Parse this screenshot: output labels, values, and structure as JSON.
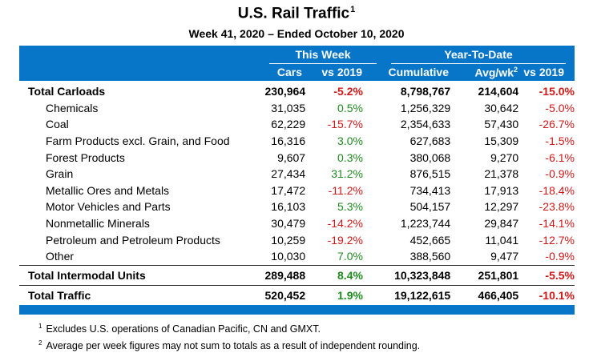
{
  "title": "U.S. Rail Traffic",
  "title_note": "1",
  "subtitle": "Week 41, 2020 – Ended October 10, 2020",
  "header": {
    "this_week": "This Week",
    "ytd": "Year-To-Date",
    "cars": "Cars",
    "vs2019": "vs 2019",
    "cumulative": "Cumulative",
    "avgwk": "Avg/wk",
    "avgwk_note": "2",
    "vs2019_ytd": "vs 2019"
  },
  "rows": [
    {
      "label": "Total Carloads",
      "cars": "230,964",
      "vs": "-5.2%",
      "cum": "8,798,767",
      "avg": "214,604",
      "vsytd": "-15.0%"
    },
    {
      "label": "Chemicals",
      "cars": "31,035",
      "vs": "0.5%",
      "cum": "1,256,329",
      "avg": "30,642",
      "vsytd": "-5.0%"
    },
    {
      "label": "Coal",
      "cars": "62,229",
      "vs": "-15.7%",
      "cum": "2,354,633",
      "avg": "57,430",
      "vsytd": "-26.7%"
    },
    {
      "label": "Farm Products excl. Grain, and Food",
      "cars": "16,316",
      "vs": "3.0%",
      "cum": "627,683",
      "avg": "15,309",
      "vsytd": "-1.5%"
    },
    {
      "label": "Forest Products",
      "cars": "9,607",
      "vs": "0.3%",
      "cum": "380,068",
      "avg": "9,270",
      "vsytd": "-6.1%"
    },
    {
      "label": "Grain",
      "cars": "27,434",
      "vs": "31.2%",
      "cum": "876,515",
      "avg": "21,378",
      "vsytd": "-0.9%"
    },
    {
      "label": "Metallic Ores and Metals",
      "cars": "17,472",
      "vs": "-11.2%",
      "cum": "734,413",
      "avg": "17,913",
      "vsytd": "-18.4%"
    },
    {
      "label": "Motor Vehicles and Parts",
      "cars": "16,103",
      "vs": "5.3%",
      "cum": "504,157",
      "avg": "12,297",
      "vsytd": "-23.8%"
    },
    {
      "label": "Nonmetallic Minerals",
      "cars": "30,479",
      "vs": "-14.2%",
      "cum": "1,223,744",
      "avg": "29,847",
      "vsytd": "-14.1%"
    },
    {
      "label": "Petroleum and Petroleum Products",
      "cars": "10,259",
      "vs": "-19.2%",
      "cum": "452,665",
      "avg": "11,041",
      "vsytd": "-12.7%"
    },
    {
      "label": "Other",
      "cars": "10,030",
      "vs": "7.0%",
      "cum": "388,560",
      "avg": "9,477",
      "vsytd": "-0.9%"
    },
    {
      "label": "Total Intermodal Units",
      "cars": "289,488",
      "vs": "8.4%",
      "cum": "10,323,848",
      "avg": "251,801",
      "vsytd": "-5.5%"
    },
    {
      "label": "Total Traffic",
      "cars": "520,452",
      "vs": "1.9%",
      "cum": "19,122,615",
      "avg": "466,405",
      "vsytd": "-10.1%"
    }
  ],
  "footnotes": [
    {
      "mark": "1",
      "text": "Excludes U.S. operations of Canadian Pacific, CN and GMXT."
    },
    {
      "mark": "2",
      "text": "Average per week figures may not sum to totals as a result of independent rounding."
    }
  ],
  "colors": {
    "header_band": "#0876c8",
    "negative": "#d01818",
    "positive": "#1f8a1f"
  }
}
